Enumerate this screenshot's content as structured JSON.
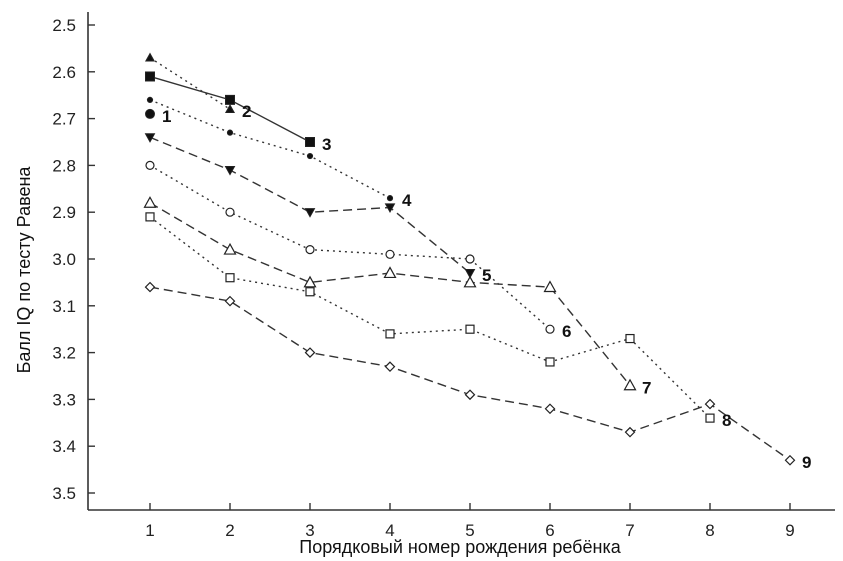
{
  "chart_data": {
    "type": "line",
    "xlabel": "Порядковый номер рождения ребёнка",
    "ylabel": "Балл IQ по тесту Равена",
    "x_ticks": [
      "1",
      "2",
      "3",
      "4",
      "5",
      "6",
      "7",
      "8",
      "9"
    ],
    "y_ticks": [
      "2.5",
      "2.6",
      "2.7",
      "2.8",
      "2.9",
      "3.0",
      "3.1",
      "3.2",
      "3.3",
      "3.4",
      "3.5"
    ],
    "xlim": [
      1,
      9
    ],
    "ylim": [
      2.5,
      3.5
    ],
    "y_inverted": true,
    "grid": false,
    "series": [
      {
        "name": "1",
        "marker": "filled-circle",
        "dash": "dotted",
        "x": [
          1
        ],
        "values": [
          2.69
        ]
      },
      {
        "name": "2",
        "marker": "filled-triangle-up",
        "dash": "dotted",
        "x": [
          1,
          2
        ],
        "values": [
          2.57,
          2.68
        ]
      },
      {
        "name": "3",
        "marker": "filled-square",
        "dash": "solid",
        "x": [
          1,
          2,
          3
        ],
        "values": [
          2.61,
          2.66,
          2.75
        ]
      },
      {
        "name": "4",
        "marker": "filled-small-dot",
        "dash": "dotted",
        "x": [
          1,
          2,
          3,
          4
        ],
        "values": [
          2.66,
          2.73,
          2.78,
          2.87
        ]
      },
      {
        "name": "5",
        "marker": "filled-triangle-down",
        "dash": "dashed",
        "x": [
          1,
          2,
          3,
          4,
          5
        ],
        "values": [
          2.74,
          2.81,
          2.9,
          2.89,
          3.03
        ]
      },
      {
        "name": "6",
        "marker": "open-circle",
        "dash": "dotted",
        "x": [
          1,
          2,
          3,
          4,
          5,
          6
        ],
        "values": [
          2.8,
          2.9,
          2.98,
          2.99,
          3.0,
          3.15
        ]
      },
      {
        "name": "7",
        "marker": "open-triangle-up",
        "dash": "dashed",
        "x": [
          1,
          2,
          3,
          4,
          5,
          6,
          7
        ],
        "values": [
          2.88,
          2.98,
          3.05,
          3.03,
          3.05,
          3.06,
          3.27
        ]
      },
      {
        "name": "8",
        "marker": "open-square",
        "dash": "dotted",
        "x": [
          1,
          2,
          3,
          4,
          5,
          6,
          7,
          8
        ],
        "values": [
          2.91,
          3.04,
          3.07,
          3.16,
          3.15,
          3.22,
          3.17,
          3.34
        ]
      },
      {
        "name": "9",
        "marker": "open-diamond",
        "dash": "dashed",
        "x": [
          1,
          2,
          3,
          4,
          5,
          6,
          7,
          8,
          9
        ],
        "values": [
          3.06,
          3.09,
          3.2,
          3.23,
          3.29,
          3.32,
          3.37,
          3.31,
          3.43
        ]
      }
    ]
  }
}
